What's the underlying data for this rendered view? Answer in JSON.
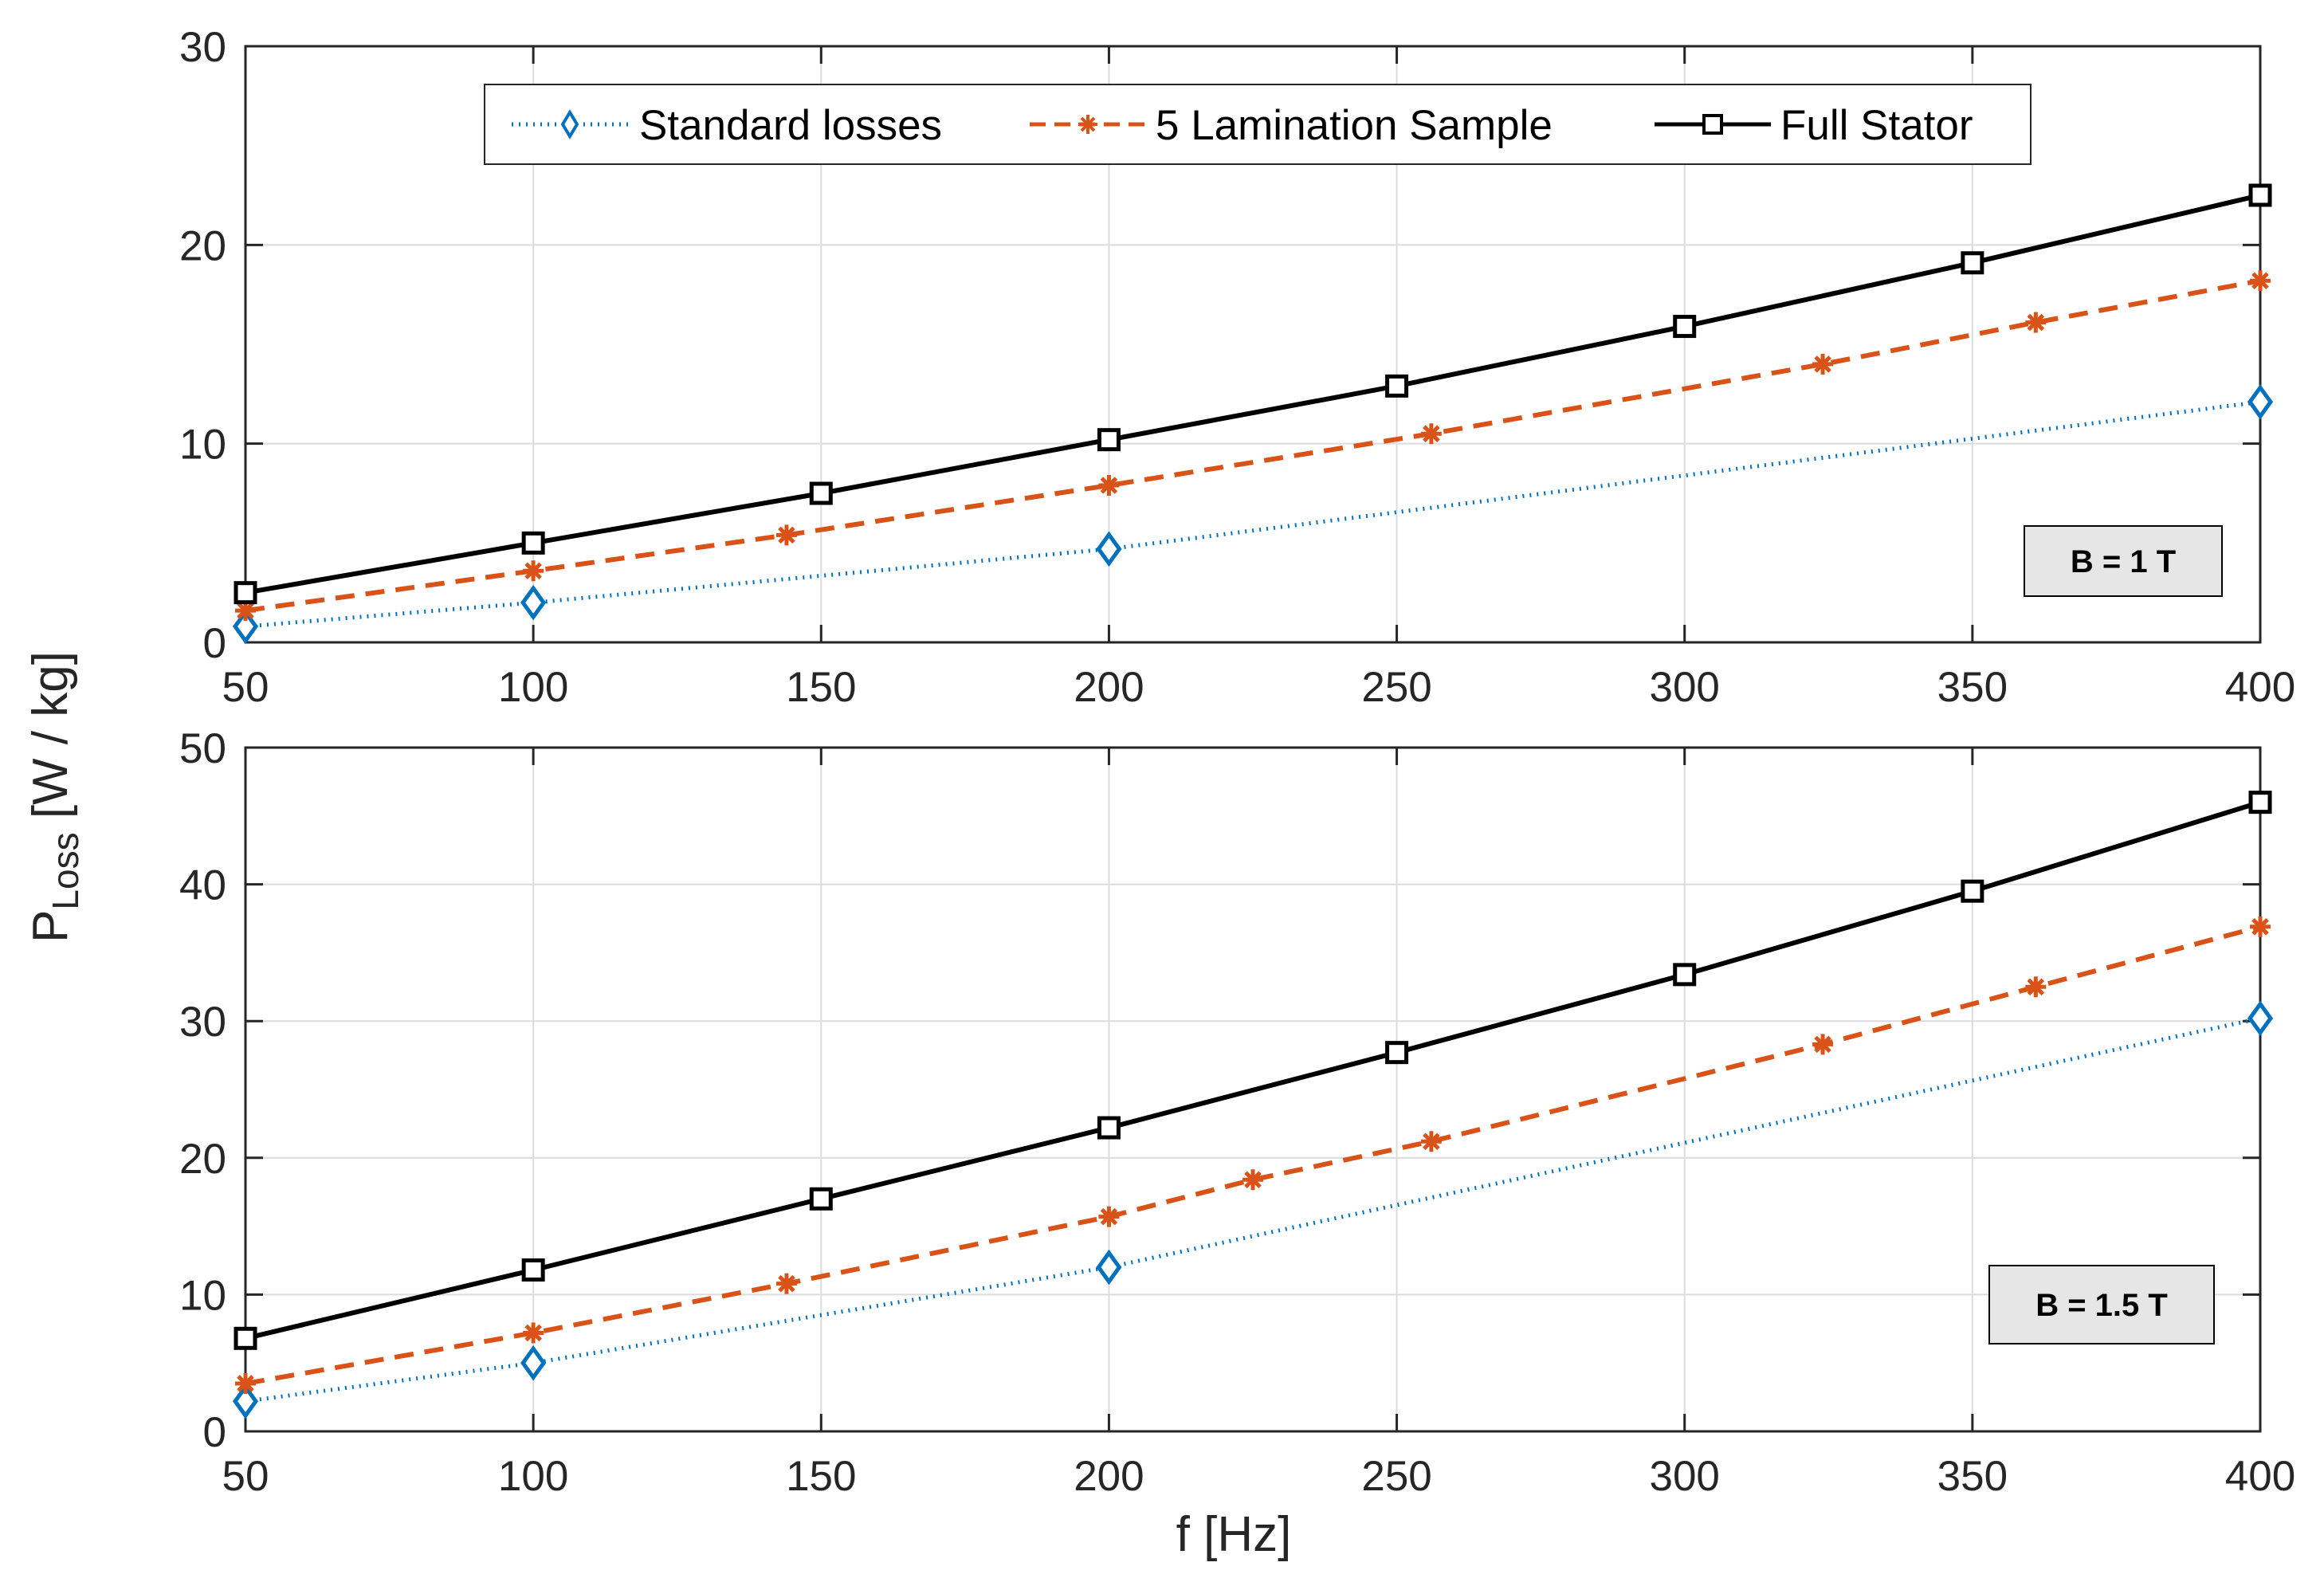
{
  "chart_data": [
    {
      "type": "line",
      "title": "",
      "xlabel": "",
      "ylabel": "",
      "xlim": [
        50,
        400
      ],
      "ylim": [
        0,
        30
      ],
      "xticks": [
        50,
        100,
        150,
        200,
        250,
        300,
        350,
        400
      ],
      "yticks": [
        0,
        10,
        20,
        30
      ],
      "grid": true,
      "annotation": "B = 1 T",
      "annotation_placement": "bottom-right",
      "legend_placement": "top-center",
      "series": [
        {
          "name": "Standard losses",
          "color": "#0072BD",
          "style": "dotted",
          "marker": "diamond",
          "x": [
            50,
            100,
            200,
            400
          ],
          "y": [
            0.8,
            2.0,
            4.7,
            12.1
          ]
        },
        {
          "name": "5 Lamination Sample",
          "color": "#D95319",
          "style": "dashed",
          "marker": "asterisk",
          "x": [
            50,
            100,
            144,
            200,
            256,
            324,
            361,
            400
          ],
          "y": [
            1.6,
            3.6,
            5.4,
            7.9,
            10.5,
            14.0,
            16.1,
            18.2
          ]
        },
        {
          "name": "Full Stator",
          "color": "#000000",
          "style": "solid",
          "marker": "square",
          "x": [
            50,
            100,
            150,
            200,
            250,
            300,
            350,
            400
          ],
          "y": [
            2.5,
            5.0,
            7.5,
            10.2,
            12.9,
            15.9,
            19.1,
            22.5
          ]
        }
      ]
    },
    {
      "type": "line",
      "title": "",
      "xlabel": "f [Hz]",
      "ylabel": "",
      "xlim": [
        50,
        400
      ],
      "ylim": [
        0,
        50
      ],
      "xticks": [
        50,
        100,
        150,
        200,
        250,
        300,
        350,
        400
      ],
      "yticks": [
        0,
        10,
        20,
        30,
        40,
        50
      ],
      "grid": true,
      "annotation": "B = 1.5 T",
      "annotation_placement": "bottom-right",
      "series": [
        {
          "name": "Standard losses",
          "color": "#0072BD",
          "style": "dotted",
          "marker": "diamond",
          "x": [
            50,
            100,
            200,
            400
          ],
          "y": [
            2.2,
            5.0,
            12.0,
            30.2
          ]
        },
        {
          "name": "5 Lamination Sample",
          "color": "#D95319",
          "style": "dashed",
          "marker": "asterisk",
          "x": [
            50,
            100,
            144,
            200,
            225,
            256,
            324,
            361,
            400
          ],
          "y": [
            3.5,
            7.2,
            10.8,
            15.7,
            18.4,
            21.2,
            28.3,
            32.5,
            36.9
          ]
        },
        {
          "name": "Full Stator",
          "color": "#000000",
          "style": "solid",
          "marker": "square",
          "x": [
            50,
            100,
            150,
            200,
            250,
            300,
            350,
            400
          ],
          "y": [
            6.8,
            11.8,
            17.0,
            22.2,
            27.7,
            33.4,
            39.5,
            46.0
          ]
        }
      ]
    }
  ],
  "shared_ylabel": {
    "main": "P",
    "subscript": "Loss",
    "unit": " [W / kg]"
  },
  "legend": {
    "entries": [
      "Standard losses",
      "5 Lamination Sample",
      "Full Stator"
    ]
  }
}
